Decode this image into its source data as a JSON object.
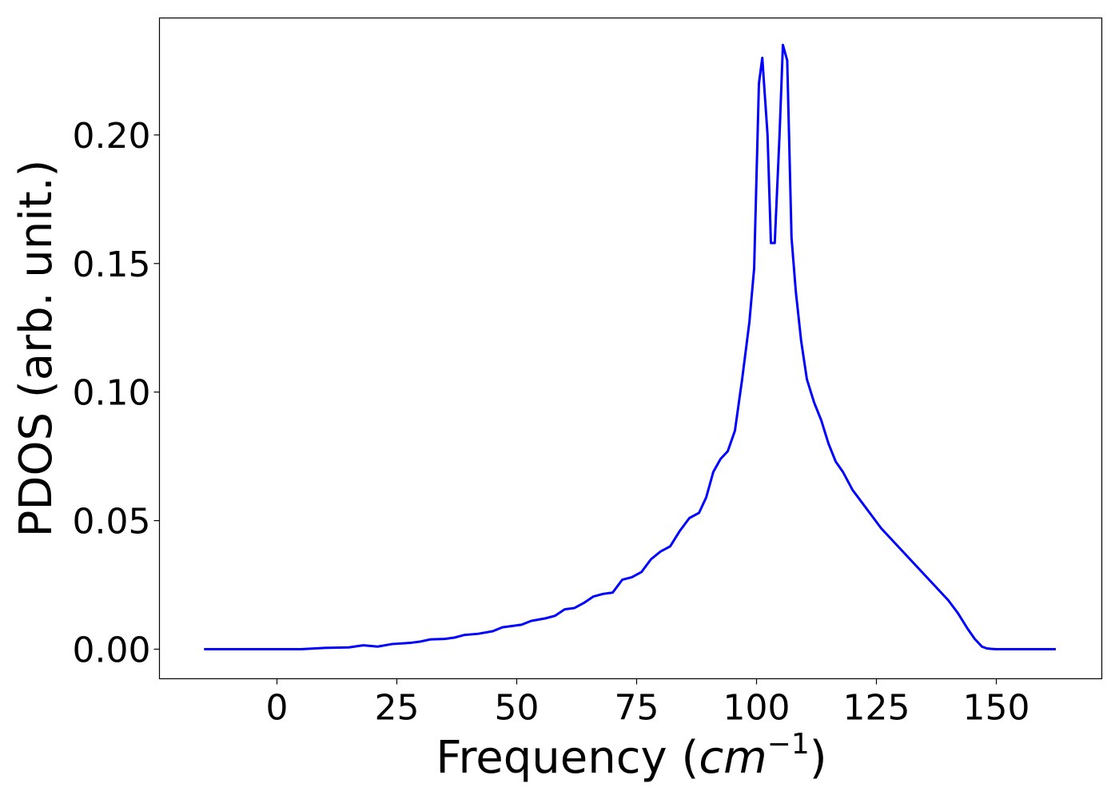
{
  "chart_data": {
    "type": "line",
    "xlabel": "Frequency (",
    "xlabel_symbol": "cm",
    "xlabel_exponent": "−1",
    "xlabel_close": ")",
    "ylabel": "PDOS (arb. unit.)",
    "xlim": [
      -24.5,
      172
    ],
    "ylim": [
      -0.0115,
      0.2455
    ],
    "xticks": [
      0,
      25,
      50,
      75,
      100,
      125,
      150
    ],
    "xtick_labels": [
      "0",
      "25",
      "50",
      "75",
      "100",
      "125",
      "150"
    ],
    "yticks": [
      0.0,
      0.05,
      0.1,
      0.15,
      0.2
    ],
    "ytick_labels": [
      "0.00",
      "0.05",
      "0.10",
      "0.15",
      "0.20"
    ],
    "grid": false,
    "line_color": "#0000ff",
    "series": [
      {
        "x": [
          -15.2,
          5,
          10,
          15,
          18,
          21,
          24,
          28,
          30,
          32,
          35,
          37,
          39,
          42,
          45,
          47,
          49,
          51,
          53,
          56,
          58,
          60,
          62,
          64,
          66,
          68,
          70,
          72,
          74,
          76,
          78,
          80,
          82,
          84,
          86,
          88,
          89.5,
          91,
          92.5,
          94,
          95.5,
          97,
          98.5,
          99.5,
          100.5,
          101.2,
          102.3,
          103,
          103.8,
          104.8,
          105.5,
          106.4,
          107.3,
          108.2,
          109.3,
          110.5,
          112,
          113.5,
          115,
          116.5,
          118,
          120,
          122,
          124,
          126,
          128,
          130,
          132,
          134,
          136,
          138,
          140,
          142,
          144,
          145.5,
          147,
          148,
          149,
          150,
          152,
          155,
          162.4
        ],
        "y": [
          0.0,
          0.0,
          0.0005,
          0.0007,
          0.0015,
          0.001,
          0.002,
          0.0025,
          0.003,
          0.0038,
          0.004,
          0.0045,
          0.0055,
          0.006,
          0.007,
          0.0085,
          0.009,
          0.0095,
          0.011,
          0.012,
          0.013,
          0.0155,
          0.016,
          0.018,
          0.0205,
          0.0215,
          0.022,
          0.027,
          0.028,
          0.03,
          0.035,
          0.038,
          0.04,
          0.046,
          0.051,
          0.053,
          0.059,
          0.069,
          0.074,
          0.077,
          0.085,
          0.105,
          0.127,
          0.148,
          0.22,
          0.23,
          0.2,
          0.158,
          0.158,
          0.2,
          0.235,
          0.229,
          0.16,
          0.139,
          0.12,
          0.105,
          0.096,
          0.089,
          0.08,
          0.073,
          0.069,
          0.062,
          0.057,
          0.052,
          0.047,
          0.043,
          0.039,
          0.035,
          0.031,
          0.027,
          0.023,
          0.019,
          0.014,
          0.008,
          0.004,
          0.001,
          0.0003,
          0.0001,
          0.0,
          0.0,
          0.0,
          0.0
        ]
      }
    ]
  }
}
